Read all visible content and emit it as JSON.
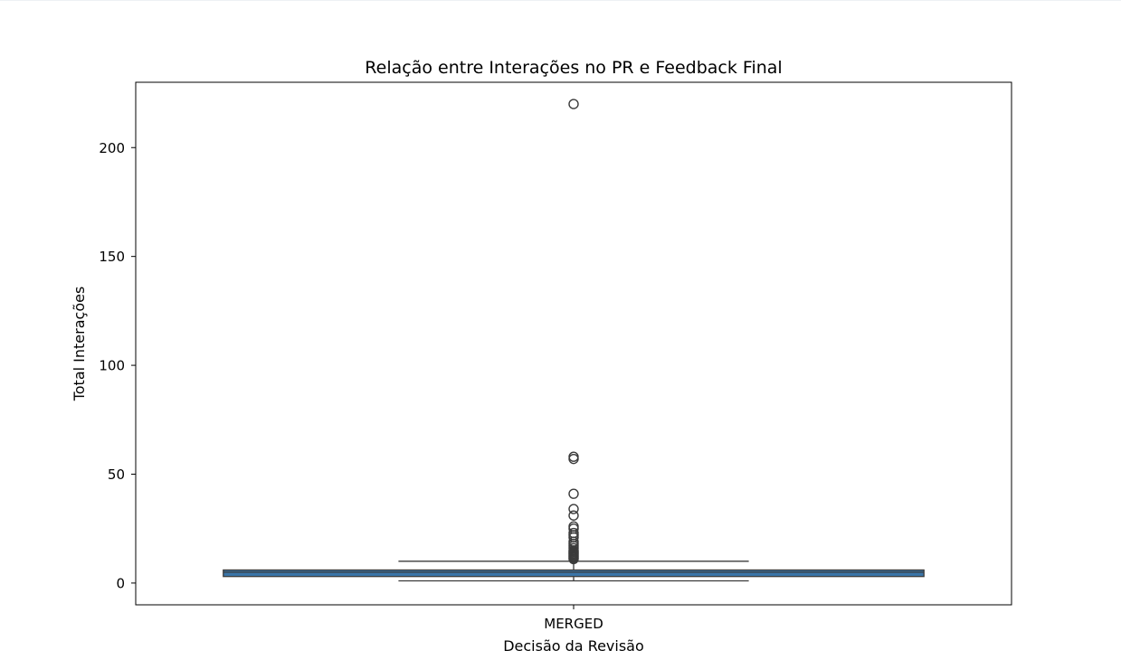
{
  "chart_data": {
    "type": "box",
    "title": "Relação entre Interações no PR e Feedback Final",
    "xlabel": "Decisão da Revisão",
    "ylabel": "Total Interações",
    "categories": [
      "MERGED"
    ],
    "ylim": [
      -10,
      230
    ],
    "yticks": [
      0,
      50,
      100,
      150,
      200
    ],
    "grid": false,
    "legend": "none",
    "colors": {
      "box_fill": "#3a75a8",
      "line": "#3b3b3b",
      "axes": "#000000"
    },
    "boxes": [
      {
        "category": "MERGED",
        "whisker_low": 1,
        "q1": 3,
        "median": 5,
        "q3": 6,
        "whisker_high": 10,
        "outliers": [
          11,
          11.5,
          12,
          12.5,
          13,
          13.5,
          14,
          14.5,
          15,
          16,
          17,
          18,
          19,
          21,
          22,
          23,
          25,
          26,
          31,
          34,
          41,
          57,
          58,
          220
        ]
      }
    ]
  }
}
